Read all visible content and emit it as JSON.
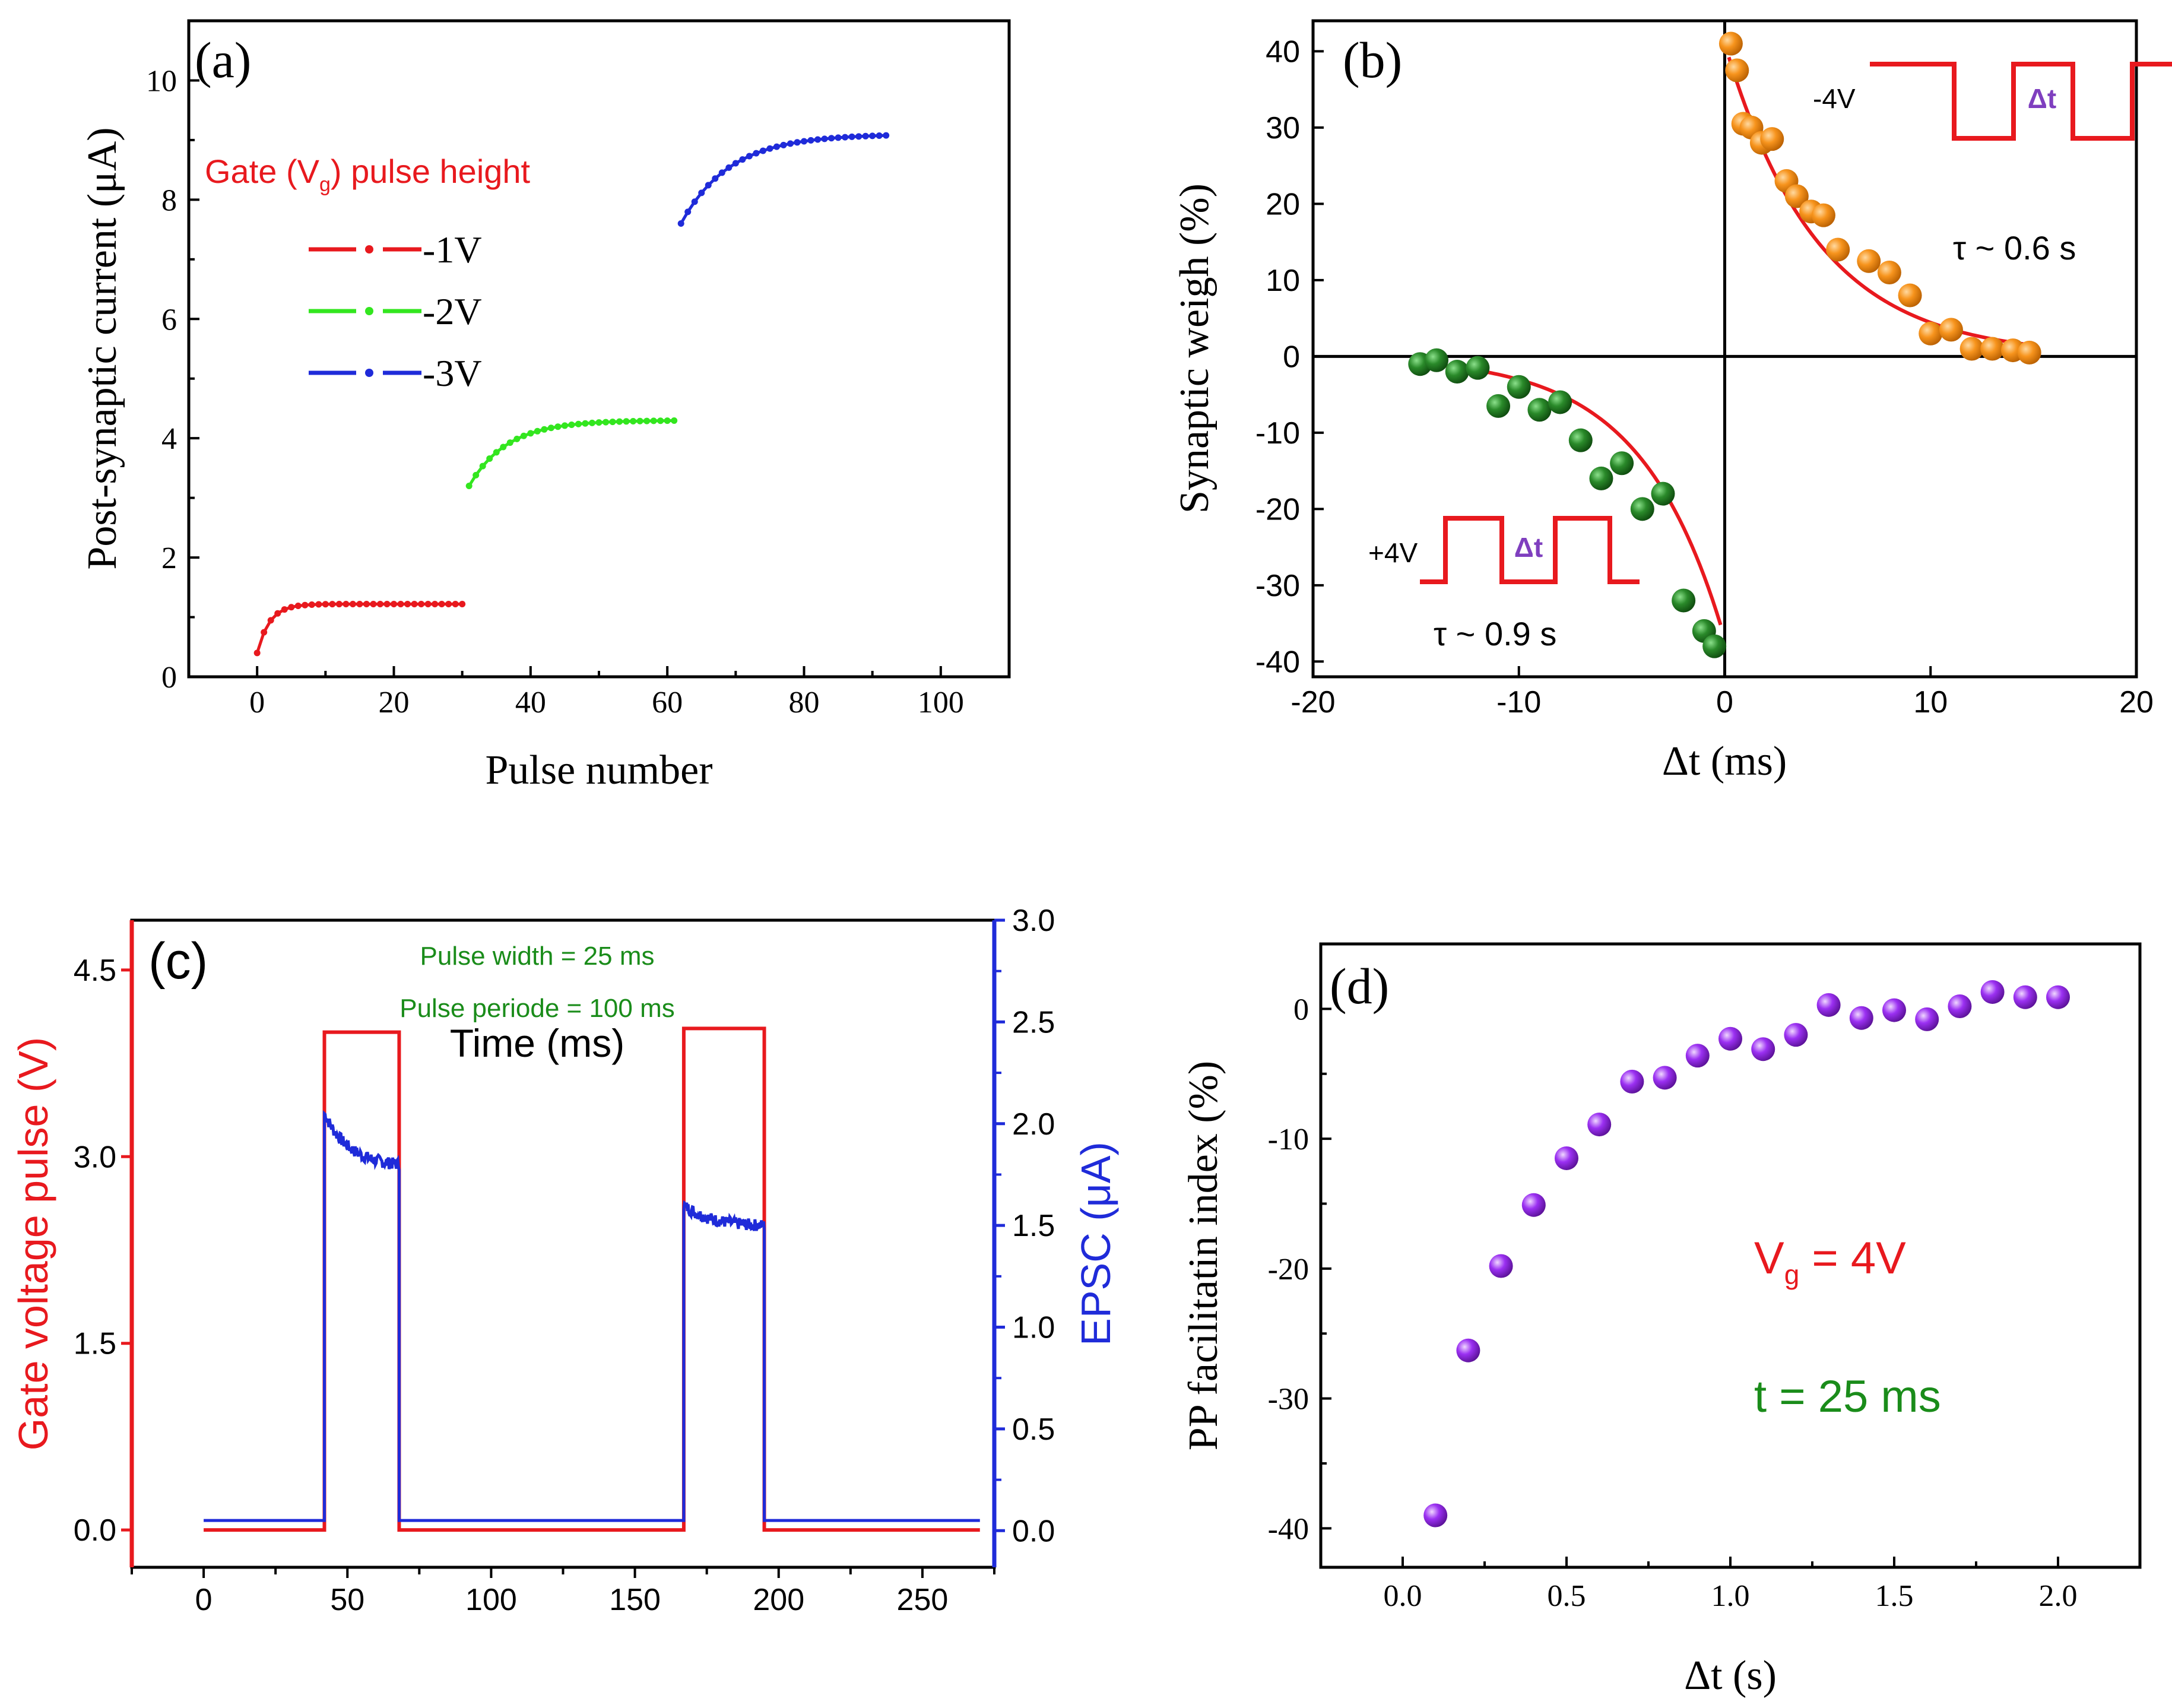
{
  "chart_data": [
    {
      "id": "a",
      "type": "scatter",
      "panel_label": "(a)",
      "xlabel": "Pulse number",
      "ylabel": "Post-synaptic current (μA)",
      "xlim": [
        -10,
        110
      ],
      "ylim": [
        0,
        11
      ],
      "xticks": [
        "0",
        "20",
        "40",
        "60",
        "80",
        "100"
      ],
      "yticks": [
        "0",
        "2",
        "4",
        "6",
        "8",
        "10"
      ],
      "legend_title_parts": [
        "Gate (V",
        "g",
        ") pulse height"
      ],
      "series": [
        {
          "name": "-1V",
          "color": "#e8191e",
          "x_start": 0,
          "x_end": 30,
          "y_start": 0.4,
          "y_end": 1.22,
          "rate": 0.55
        },
        {
          "name": "-2V",
          "color": "#33e61f",
          "x_start": 31,
          "x_end": 61,
          "y_start": 3.2,
          "y_end": 4.3,
          "rate": 0.18
        },
        {
          "name": "-3V",
          "color": "#1f2bd9",
          "x_start": 62,
          "x_end": 92,
          "y_start": 7.6,
          "y_end": 9.1,
          "rate": 0.14
        }
      ]
    },
    {
      "id": "b",
      "type": "scatter",
      "panel_label": "(b)",
      "xlabel": "Δt (ms)",
      "ylabel": "Synaptic weigh (%)",
      "xlim": [
        -20,
        20
      ],
      "ylim": [
        -42,
        44
      ],
      "xticks": [
        "-20",
        "-10",
        "0",
        "10",
        "20"
      ],
      "yticks": [
        "-40",
        "-30",
        "-20",
        "-10",
        "0",
        "10",
        "20",
        "30",
        "40"
      ],
      "positive_series": {
        "color": "#f7941d",
        "points": [
          [
            0.3,
            41
          ],
          [
            0.6,
            37.5
          ],
          [
            0.9,
            30.5
          ],
          [
            1.3,
            30
          ],
          [
            1.8,
            28
          ],
          [
            2.3,
            28.5
          ],
          [
            3.0,
            23
          ],
          [
            3.5,
            21
          ],
          [
            4.2,
            19
          ],
          [
            4.8,
            18.5
          ],
          [
            5.5,
            14
          ],
          [
            7.0,
            12.5
          ],
          [
            8.0,
            11
          ],
          [
            9.0,
            8
          ],
          [
            10.0,
            3
          ],
          [
            11.0,
            3.5
          ],
          [
            12.0,
            1
          ],
          [
            13.0,
            1
          ],
          [
            14.0,
            0.8
          ],
          [
            14.8,
            0.5
          ]
        ],
        "fit": {
          "a": 41,
          "tau": 4.5
        },
        "tau_label": "τ ~ 0.6 s",
        "pulse_label": "-4V",
        "dt_label": "Δt"
      },
      "negative_series": {
        "color": "#2a8a2a",
        "points": [
          [
            -14.8,
            -1
          ],
          [
            -14.0,
            -0.5
          ],
          [
            -13.0,
            -2
          ],
          [
            -12.0,
            -1.5
          ],
          [
            -11.0,
            -6.5
          ],
          [
            -10.0,
            -4
          ],
          [
            -9.0,
            -7
          ],
          [
            -8.0,
            -6
          ],
          [
            -7.0,
            -11
          ],
          [
            -6.0,
            -16
          ],
          [
            -5.0,
            -14
          ],
          [
            -4.0,
            -20
          ],
          [
            -3.0,
            -18
          ],
          [
            -2.0,
            -32
          ],
          [
            -1.0,
            -36
          ],
          [
            -0.5,
            -38
          ]
        ],
        "fit": {
          "a": -37,
          "tau": 4.0
        },
        "tau_label": "τ ~ 0.9 s",
        "pulse_label": "+4V",
        "dt_label": "Δt"
      }
    },
    {
      "id": "c",
      "type": "line",
      "panel_label": "(c)",
      "xlabel": "Time (ms)",
      "ylabel_left": "Gate voltage pulse (V)",
      "ylabel_right": "EPSC (μA)",
      "xlim": [
        -25,
        275
      ],
      "ylim_left": [
        -0.3,
        4.9
      ],
      "ylim_right": [
        -0.18,
        3.0
      ],
      "xticks": [
        "0",
        "50",
        "100",
        "150",
        "200",
        "250"
      ],
      "yticks_left": [
        "0.0",
        "1.5",
        "3.0",
        "4.5"
      ],
      "yticks_right": [
        "0.0",
        "0.5",
        "1.0",
        "1.5",
        "2.0",
        "2.5",
        "3.0"
      ],
      "annotations": [
        "Pulse width = 25 ms",
        "Pulse periode = 100 ms"
      ],
      "gate_voltage": {
        "color": "#e8191e",
        "baseline": 0.0,
        "pulses": [
          [
            42,
            68,
            4.0
          ],
          [
            167,
            195,
            4.03
          ]
        ]
      },
      "epsc": {
        "color": "#1f2bd9",
        "baseline": 0.05,
        "pulses": [
          [
            42,
            68,
            2.05,
            1.8
          ],
          [
            167,
            195,
            1.6,
            1.5
          ]
        ]
      }
    },
    {
      "id": "d",
      "type": "scatter",
      "panel_label": "(d)",
      "xlabel": "Δt (s)",
      "ylabel": "PP facilitatin index (%)",
      "xlim": [
        -0.25,
        2.25
      ],
      "ylim": [
        -43,
        5
      ],
      "xticks": [
        "0.0",
        "0.5",
        "1.0",
        "1.5",
        "2.0"
      ],
      "yticks": [
        "-40",
        "-30",
        "-20",
        "-10",
        "0"
      ],
      "color": "#9b30f2",
      "x": [
        0.1,
        0.2,
        0.3,
        0.4,
        0.5,
        0.6,
        0.7,
        0.8,
        0.9,
        1.0,
        1.1,
        1.2,
        1.3,
        1.4,
        1.5,
        1.6,
        1.7,
        1.8,
        1.9,
        2.0
      ],
      "y": [
        -39,
        -26.3,
        -19.8,
        -15.1,
        -11.5,
        -8.9,
        -5.6,
        -5.3,
        -3.6,
        -2.3,
        -3.1,
        -2.0,
        0.3,
        -0.7,
        -0.1,
        -0.8,
        0.2,
        1.3,
        0.9,
        0.9
      ],
      "annotation_vg_parts": [
        "V",
        "g",
        " = 4V"
      ],
      "annotation_t": "t = 25 ms"
    }
  ]
}
